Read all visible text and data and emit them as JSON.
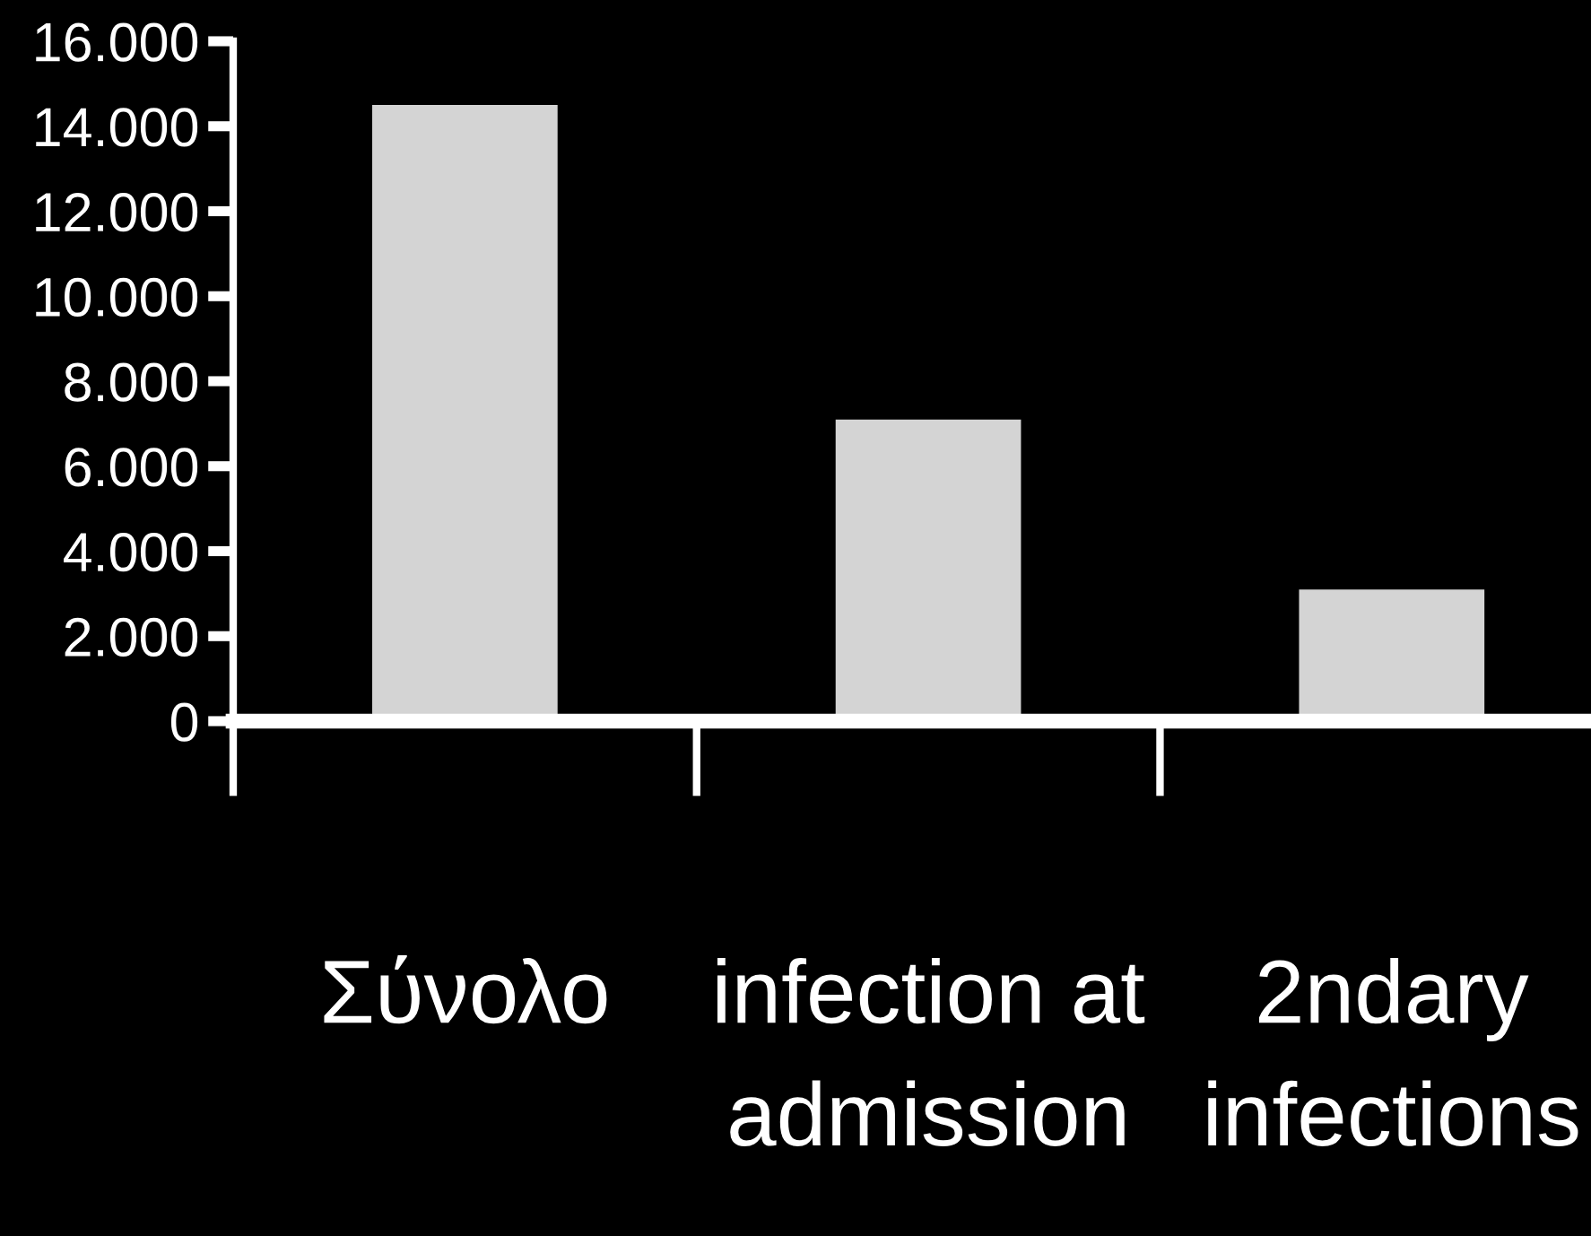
{
  "chart_data": {
    "type": "bar",
    "categories": [
      "Σύνολο",
      "infection at\nadmission",
      "2ndary\ninfections"
    ],
    "values": [
      14500,
      7100,
      3100
    ],
    "color": "#d4d4d4",
    "ylim": [
      0,
      16000
    ],
    "yticks": [
      {
        "value": 0,
        "label": "0"
      },
      {
        "value": 2000,
        "label": "2.000"
      },
      {
        "value": 4000,
        "label": "4.000"
      },
      {
        "value": 6000,
        "label": "6.000"
      },
      {
        "value": 8000,
        "label": "8.000"
      },
      {
        "value": 10000,
        "label": "10.000"
      },
      {
        "value": 12000,
        "label": "12.000"
      },
      {
        "value": 14000,
        "label": "14.000"
      },
      {
        "value": 16000,
        "label": "16.000"
      }
    ],
    "grid": false
  }
}
